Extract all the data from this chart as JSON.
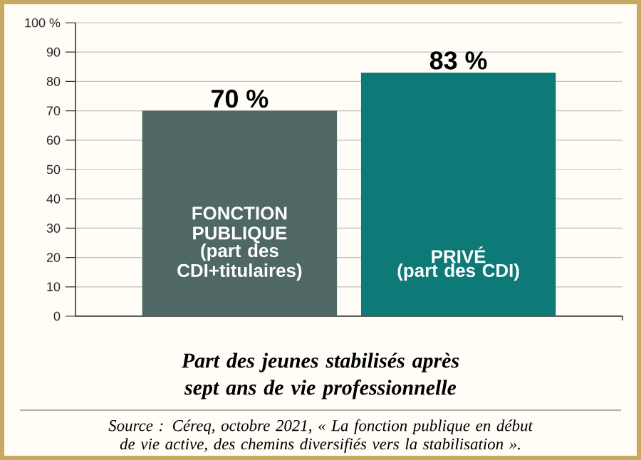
{
  "chart_data": {
    "type": "bar",
    "title": "Part des jeunes stabilisés après sept ans de vie professionnelle",
    "categories": [
      "FONCTION PUBLIQUE",
      "PRIVÉ"
    ],
    "values": [
      70,
      83
    ],
    "colors": [
      "#4f6866",
      "#0e7a78"
    ],
    "value_labels": [
      "70 %",
      "83 %"
    ],
    "ylim": [
      0,
      100
    ],
    "yticks": [
      0,
      10,
      20,
      30,
      40,
      50,
      60,
      70,
      80,
      90,
      {
        "value": 100,
        "label": "100 %"
      }
    ],
    "grid": "y",
    "annotations": [
      "(part des CDI+titulaires)",
      "(part des CDI)",
      "Source : Céreq, octobre 2021, « La fonction publique en début de vie active, des chemins diversifiés vers la stabilisation »."
    ]
  }
}
